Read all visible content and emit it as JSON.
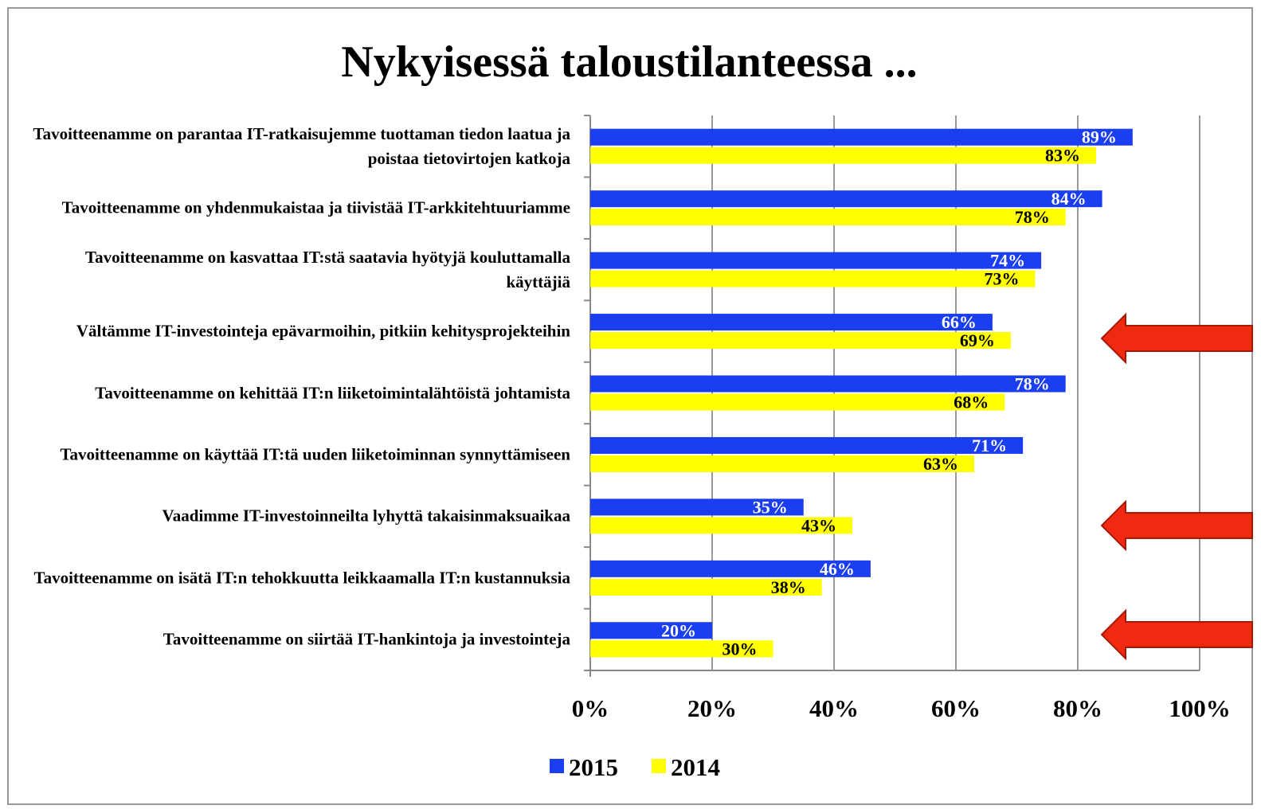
{
  "chart_data": {
    "type": "bar",
    "orientation": "horizontal",
    "title": "Nykyisessä taloustilanteessa ...",
    "categories": [
      "Tavoitteenamme on parantaa IT-ratkaisujemme tuottaman tiedon laatua ja poistaa tietovirtojen katkoja",
      "Tavoitteenamme on yhdenmukaistaa ja tiivistää IT-arkkitehtuuriamme",
      "Tavoitteenamme on kasvattaa IT:stä saatavia hyötyjä kouluttamalla käyttäjiä",
      "Vältämme IT-investointeja epävarmoihin, pitkiin kehitysprojekteihin",
      "Tavoitteenamme on kehittää IT:n liiketoimintalähtöistä johtamista",
      "Tavoitteenamme on käyttää IT:tä uuden liiketoiminnan synnyttämiseen",
      "Vaadimme IT-investoinneilta lyhyttä takaisinmaksuaikaa",
      "Tavoitteenamme on isätä IT:n tehokkuutta leikkaamalla IT:n kustannuksia",
      "Tavoitteenamme on siirtää IT-hankintoja ja investointeja"
    ],
    "series": [
      {
        "name": "2015",
        "color": "#1a3ef0",
        "values": [
          89,
          84,
          74,
          66,
          78,
          71,
          35,
          46,
          20
        ],
        "value_labels": [
          "89%",
          "84%",
          "74%",
          "66%",
          "78%",
          "71%",
          "35%",
          "46%",
          "20%"
        ]
      },
      {
        "name": "2014",
        "color": "#ffff00",
        "values": [
          83,
          78,
          73,
          69,
          68,
          63,
          43,
          38,
          30
        ],
        "value_labels": [
          "83%",
          "78%",
          "73%",
          "69%",
          "68%",
          "63%",
          "43%",
          "38%",
          "30%"
        ]
      }
    ],
    "xlim": [
      0,
      100
    ],
    "xticks": [
      {
        "value": 0,
        "label": "0%"
      },
      {
        "value": 20,
        "label": "20%"
      },
      {
        "value": 40,
        "label": "40%"
      },
      {
        "value": 60,
        "label": "60%"
      },
      {
        "value": 80,
        "label": "80%"
      },
      {
        "value": 100,
        "label": "100%"
      }
    ],
    "grid": true,
    "legend": "bottom"
  }
}
